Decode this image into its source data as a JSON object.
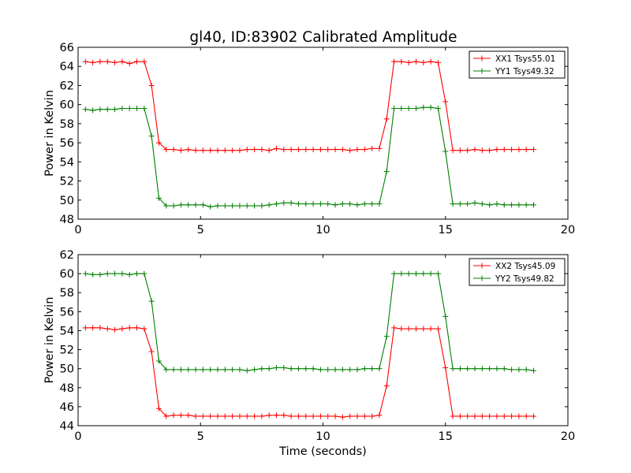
{
  "title": "gl40, ID:83902 Calibrated Amplitude",
  "colors": {
    "xx": "#ff0000",
    "yy": "#008000",
    "axis": "#000000"
  },
  "chart_data": [
    {
      "type": "line",
      "ylabel": "Power in Kelvin",
      "xlabel": "",
      "xlim": [
        0,
        20
      ],
      "ylim": [
        48,
        66
      ],
      "xticks": [
        0,
        5,
        10,
        15,
        20
      ],
      "yticks": [
        48,
        50,
        52,
        54,
        56,
        58,
        60,
        62,
        64,
        66
      ],
      "grid": false,
      "legend": "top-right",
      "x": [
        0.3,
        0.6,
        0.9,
        1.2,
        1.5,
        1.8,
        2.1,
        2.4,
        2.7,
        3.0,
        3.3,
        3.6,
        3.9,
        4.2,
        4.5,
        4.8,
        5.1,
        5.4,
        5.7,
        6.0,
        6.3,
        6.6,
        6.9,
        7.2,
        7.5,
        7.8,
        8.1,
        8.4,
        8.7,
        9.0,
        9.3,
        9.6,
        9.9,
        10.2,
        10.5,
        10.8,
        11.1,
        11.4,
        11.7,
        12.0,
        12.3,
        12.6,
        12.9,
        13.2,
        13.5,
        13.8,
        14.1,
        14.4,
        14.7,
        15.0,
        15.3,
        15.6,
        15.9,
        16.2,
        16.5,
        16.8,
        17.1,
        17.4,
        17.7,
        18.0,
        18.3,
        18.6
      ],
      "series": [
        {
          "name": "XX1 Tsys55.01",
          "color": "#ff0000",
          "values": [
            64.5,
            64.4,
            64.5,
            64.5,
            64.4,
            64.5,
            64.3,
            64.5,
            64.5,
            62.0,
            56.0,
            55.3,
            55.3,
            55.2,
            55.3,
            55.2,
            55.2,
            55.2,
            55.2,
            55.2,
            55.2,
            55.2,
            55.3,
            55.3,
            55.3,
            55.2,
            55.4,
            55.3,
            55.3,
            55.3,
            55.3,
            55.3,
            55.3,
            55.3,
            55.3,
            55.3,
            55.2,
            55.3,
            55.3,
            55.4,
            55.4,
            58.5,
            64.5,
            64.5,
            64.4,
            64.5,
            64.4,
            64.5,
            64.4,
            60.3,
            55.2,
            55.2,
            55.2,
            55.3,
            55.2,
            55.2,
            55.3,
            55.3,
            55.3,
            55.3,
            55.3,
            55.3
          ]
        },
        {
          "name": "YY1 Tsys49.32",
          "color": "#008000",
          "values": [
            59.5,
            59.4,
            59.5,
            59.5,
            59.5,
            59.6,
            59.6,
            59.6,
            59.6,
            56.7,
            50.2,
            49.4,
            49.4,
            49.5,
            49.5,
            49.5,
            49.5,
            49.3,
            49.4,
            49.4,
            49.4,
            49.4,
            49.4,
            49.4,
            49.4,
            49.5,
            49.6,
            49.7,
            49.7,
            49.6,
            49.6,
            49.6,
            49.6,
            49.6,
            49.5,
            49.6,
            49.6,
            49.5,
            49.6,
            49.6,
            49.6,
            53.0,
            59.6,
            59.6,
            59.6,
            59.6,
            59.7,
            59.7,
            59.6,
            55.1,
            49.6,
            49.6,
            49.6,
            49.7,
            49.6,
            49.5,
            49.6,
            49.5,
            49.5,
            49.5,
            49.5,
            49.5
          ]
        }
      ]
    },
    {
      "type": "line",
      "ylabel": "Power in Kelvin",
      "xlabel": "Time (seconds)",
      "xlim": [
        0,
        20
      ],
      "ylim": [
        44,
        62
      ],
      "xticks": [
        0,
        5,
        10,
        15,
        20
      ],
      "yticks": [
        44,
        46,
        48,
        50,
        52,
        54,
        56,
        58,
        60,
        62
      ],
      "grid": false,
      "legend": "top-right",
      "x": [
        0.3,
        0.6,
        0.9,
        1.2,
        1.5,
        1.8,
        2.1,
        2.4,
        2.7,
        3.0,
        3.3,
        3.6,
        3.9,
        4.2,
        4.5,
        4.8,
        5.1,
        5.4,
        5.7,
        6.0,
        6.3,
        6.6,
        6.9,
        7.2,
        7.5,
        7.8,
        8.1,
        8.4,
        8.7,
        9.0,
        9.3,
        9.6,
        9.9,
        10.2,
        10.5,
        10.8,
        11.1,
        11.4,
        11.7,
        12.0,
        12.3,
        12.6,
        12.9,
        13.2,
        13.5,
        13.8,
        14.1,
        14.4,
        14.7,
        15.0,
        15.3,
        15.6,
        15.9,
        16.2,
        16.5,
        16.8,
        17.1,
        17.4,
        17.7,
        18.0,
        18.3,
        18.6
      ],
      "series": [
        {
          "name": "XX2 Tsys45.09",
          "color": "#ff0000",
          "values": [
            54.3,
            54.3,
            54.3,
            54.2,
            54.1,
            54.2,
            54.3,
            54.3,
            54.2,
            51.8,
            45.8,
            45.0,
            45.1,
            45.1,
            45.1,
            45.0,
            45.0,
            45.0,
            45.0,
            45.0,
            45.0,
            45.0,
            45.0,
            45.0,
            45.0,
            45.1,
            45.1,
            45.1,
            45.0,
            45.0,
            45.0,
            45.0,
            45.0,
            45.0,
            45.0,
            44.9,
            45.0,
            45.0,
            45.0,
            45.0,
            45.1,
            48.2,
            54.3,
            54.2,
            54.2,
            54.2,
            54.2,
            54.2,
            54.2,
            50.1,
            45.0,
            45.0,
            45.0,
            45.0,
            45.0,
            45.0,
            45.0,
            45.0,
            45.0,
            45.0,
            45.0,
            45.0
          ]
        },
        {
          "name": "YY2 Tsys49.82",
          "color": "#008000",
          "values": [
            60.0,
            59.9,
            59.9,
            60.0,
            60.0,
            60.0,
            59.9,
            60.0,
            60.0,
            57.1,
            50.8,
            49.9,
            49.9,
            49.9,
            49.9,
            49.9,
            49.9,
            49.9,
            49.9,
            49.9,
            49.9,
            49.9,
            49.8,
            49.9,
            50.0,
            50.0,
            50.1,
            50.1,
            50.0,
            50.0,
            50.0,
            50.0,
            49.9,
            49.9,
            49.9,
            49.9,
            49.9,
            49.9,
            50.0,
            50.0,
            50.0,
            53.4,
            60.0,
            60.0,
            60.0,
            60.0,
            60.0,
            60.0,
            60.0,
            55.5,
            50.0,
            50.0,
            50.0,
            50.0,
            50.0,
            50.0,
            50.0,
            50.0,
            49.9,
            49.9,
            49.9,
            49.8
          ]
        }
      ]
    }
  ]
}
